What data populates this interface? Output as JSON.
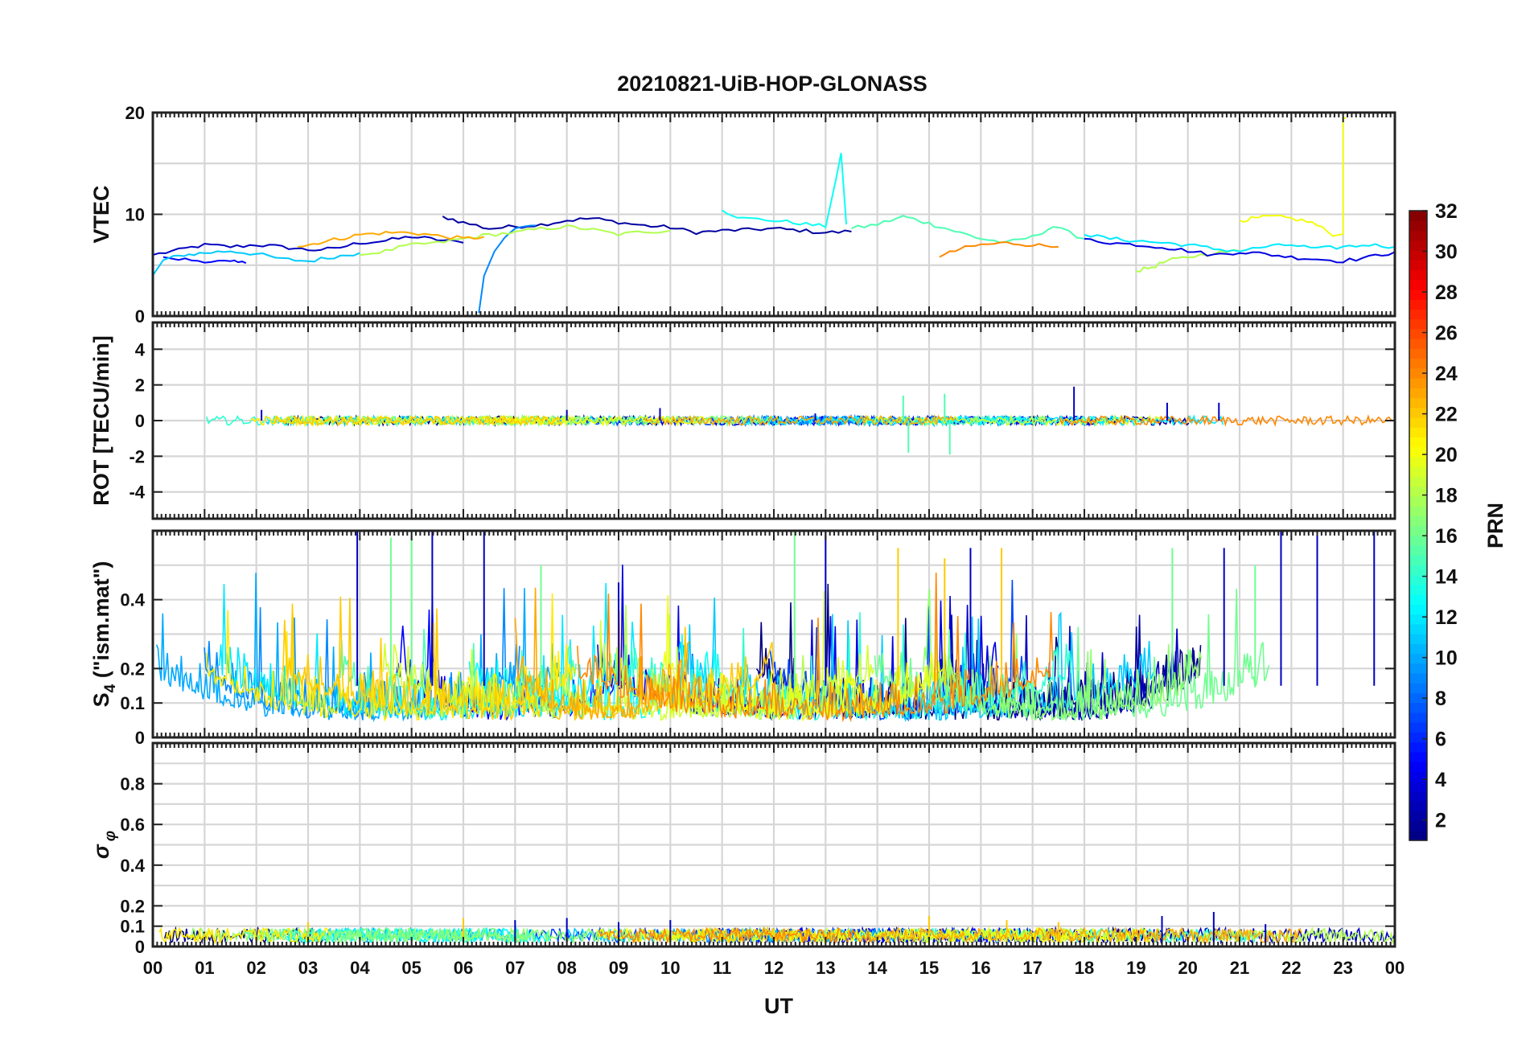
{
  "chart_data": {
    "type": "line",
    "title": "20210821-UiB-HOP-GLONASS",
    "xlabel": "UT",
    "x_range": [
      0,
      24
    ],
    "x_tick_labels": [
      "00",
      "01",
      "02",
      "03",
      "04",
      "05",
      "06",
      "07",
      "08",
      "09",
      "10",
      "11",
      "12",
      "13",
      "14",
      "15",
      "16",
      "17",
      "18",
      "19",
      "20",
      "21",
      "22",
      "23",
      "00"
    ],
    "grid": true,
    "colorbar": {
      "label": "PRN",
      "range": [
        1,
        32
      ],
      "colormap": "jet",
      "tick_labels": [
        "2",
        "4",
        "6",
        "8",
        "10",
        "12",
        "14",
        "16",
        "18",
        "20",
        "22",
        "24",
        "26",
        "28",
        "30",
        "32"
      ],
      "placement": "right"
    },
    "panels": [
      {
        "id": "vtec",
        "ylabel": "VTEC",
        "ylim": [
          0,
          20
        ],
        "y_tick_labels": [
          "0",
          "10",
          "20"
        ],
        "series": [
          {
            "prn": 3,
            "x": [
              0.0,
              0.5,
              1.0,
              1.5,
              2.0,
              2.5,
              3.0,
              3.5,
              4.0,
              4.5,
              5.0,
              5.5,
              6.0
            ],
            "y": [
              6.0,
              6.5,
              7.0,
              6.8,
              7.0,
              6.8,
              6.5,
              6.6,
              7.2,
              7.4,
              7.8,
              7.5,
              7.2
            ]
          },
          {
            "prn": 2,
            "x": [
              5.6,
              6.0,
              6.5,
              7.0,
              7.5,
              8.0,
              8.5,
              9.0,
              9.5,
              10.0,
              10.5,
              11.0,
              11.5,
              12.0,
              12.5,
              13.0,
              13.5
            ],
            "y": [
              9.8,
              9.2,
              8.6,
              8.8,
              9.0,
              9.4,
              9.6,
              9.2,
              8.9,
              8.7,
              8.2,
              8.4,
              8.5,
              8.6,
              8.4,
              8.2,
              8.3
            ]
          },
          {
            "prn": 5,
            "x": [
              0.2,
              0.5,
              1.0,
              1.5,
              1.8
            ],
            "y": [
              5.8,
              5.6,
              5.4,
              5.3,
              5.2
            ]
          },
          {
            "prn": 9,
            "x": [
              6.3,
              6.4,
              6.6,
              6.8,
              7.0,
              7.4
            ],
            "y": [
              0.3,
              4.0,
              6.5,
              7.8,
              8.6,
              8.9
            ]
          },
          {
            "prn": 11,
            "x": [
              0.0,
              0.2,
              0.6,
              1.0,
              1.5,
              2.0,
              2.5,
              3.0,
              3.5,
              4.0
            ],
            "y": [
              4.0,
              5.5,
              6.0,
              6.2,
              6.4,
              6.1,
              5.6,
              5.4,
              5.8,
              6.2
            ]
          },
          {
            "prn": 13,
            "x": [
              11.0,
              11.4,
              12.0,
              12.5,
              13.0,
              13.2,
              13.3,
              13.4
            ],
            "y": [
              10.4,
              9.6,
              9.4,
              9.1,
              8.8,
              13.5,
              16.0,
              9.0
            ]
          },
          {
            "prn": 15,
            "x": [
              13.5,
              14.0,
              14.5,
              14.8,
              15.2,
              15.6,
              16.0,
              16.5,
              17.0,
              17.4,
              18.0
            ],
            "y": [
              8.6,
              9.0,
              9.8,
              9.4,
              8.8,
              8.2,
              7.6,
              7.2,
              7.8,
              8.8,
              7.6
            ]
          },
          {
            "prn": 18,
            "x": [
              4.0,
              4.5,
              5.0,
              5.5,
              6.0,
              6.5,
              7.0,
              7.5,
              8.0,
              8.5,
              9.0,
              9.5,
              10.0
            ],
            "y": [
              6.0,
              6.4,
              7.0,
              7.2,
              7.6,
              8.0,
              8.2,
              8.6,
              8.8,
              8.5,
              8.0,
              8.3,
              8.4
            ]
          },
          {
            "prn": 23,
            "x": [
              2.8,
              3.2,
              3.6,
              4.0,
              4.5,
              5.0,
              5.5,
              6.0,
              6.4
            ],
            "y": [
              6.8,
              7.2,
              7.6,
              8.0,
              8.2,
              8.2,
              7.9,
              7.6,
              7.8
            ]
          },
          {
            "prn": 24,
            "x": [
              15.2,
              15.6,
              16.0,
              16.5,
              17.0,
              17.5
            ],
            "y": [
              5.8,
              6.6,
              7.0,
              7.2,
              7.0,
              6.8
            ]
          },
          {
            "prn": 20,
            "x": [
              21.0,
              21.3,
              21.6,
              22.0,
              22.4,
              22.8,
              23.0,
              23.0,
              23.05
            ],
            "y": [
              9.4,
              9.6,
              9.8,
              9.6,
              9.2,
              8.0,
              8.0,
              19.5,
              19.5
            ]
          },
          {
            "prn": 18,
            "x": [
              19.0,
              19.3,
              19.6,
              20.0,
              20.5,
              21.0
            ],
            "y": [
              4.4,
              4.8,
              5.4,
              5.8,
              6.2,
              6.4
            ]
          },
          {
            "prn": 4,
            "x": [
              18.0,
              18.5,
              19.0,
              19.5,
              20.0,
              20.5,
              21.0,
              21.5,
              22.0,
              22.5,
              23.0,
              23.5,
              24.0
            ],
            "y": [
              7.6,
              7.2,
              7.0,
              6.8,
              6.4,
              6.0,
              6.3,
              6.1,
              5.8,
              5.6,
              5.4,
              5.8,
              6.3
            ]
          },
          {
            "prn": 12,
            "x": [
              18.0,
              18.5,
              19.0,
              19.5,
              20.0,
              20.5,
              21.0,
              21.5,
              22.0,
              22.5,
              23.0,
              23.5,
              24.0
            ],
            "y": [
              8.0,
              7.6,
              7.4,
              7.2,
              7.0,
              6.6,
              6.4,
              6.8,
              7.0,
              6.6,
              6.8,
              7.0,
              6.8
            ]
          }
        ]
      },
      {
        "id": "rot",
        "ylabel": "ROT [TECU/min]",
        "ylim": [
          -5.5,
          5.5
        ],
        "y_tick_labels": [
          "-4",
          "-2",
          "0",
          "2",
          "4"
        ],
        "note": "dense per-PRN traces, mostly within ±0.5 with spikes near 14.5–15.5 UT (−2 to +1.8) and 17.8 UT (+1.9)",
        "series_summary": [
          {
            "prn": 3,
            "x": [
              2.1,
              8.0,
              9.8,
              12.8,
              17.8,
              19.6,
              20.6
            ],
            "y": [
              0.6,
              0.6,
              0.7,
              0.4,
              1.9,
              1.0,
              1.0
            ]
          },
          {
            "prn": 15,
            "x": [
              14.5,
              14.6,
              15.3,
              15.4
            ],
            "y": [
              1.4,
              -1.8,
              1.5,
              -1.9
            ]
          }
        ]
      },
      {
        "id": "s4",
        "ylabel": "S4 (\"ism.mat\")",
        "ylim": [
          0,
          0.6
        ],
        "y_tick_labels": [
          "0",
          "0.1",
          "0.2",
          "0.4"
        ],
        "note": "dense per-PRN scintillation traces, baseline 0.05–0.15 with bursts up to the 0.6 limit",
        "bursts": [
          {
            "prn": 3,
            "x": [
              3.95,
              5.4,
              6.4,
              9.0,
              13.0,
              15.8,
              20.7,
              21.8,
              22.5,
              23.6
            ],
            "y": [
              0.6,
              0.6,
              0.6,
              0.45,
              0.6,
              0.55,
              0.55,
              0.6,
              0.6,
              0.6
            ]
          },
          {
            "prn": 16,
            "x": [
              4.6,
              5.0,
              7.5,
              12.4,
              19.7,
              21.3
            ],
            "y": [
              0.58,
              0.6,
              0.5,
              0.6,
              0.55,
              0.5
            ]
          },
          {
            "prn": 22,
            "x": [
              14.4,
              15.3,
              16.4
            ],
            "y": [
              0.55,
              0.52,
              0.55
            ]
          }
        ]
      },
      {
        "id": "sigma_phi",
        "ylabel": "σφ",
        "ylim": [
          0,
          1.0
        ],
        "y_tick_labels": [
          "0",
          "0.1",
          "0.2",
          "0.4",
          "0.6",
          "0.8"
        ],
        "note": "dense per-PRN traces, mostly 0.02–0.12 with peaks ~0.17",
        "series_summary": [
          {
            "prn": 3,
            "x": [
              7.0,
              8.0,
              9.0,
              10.0,
              19.5,
              20.5,
              21.5
            ],
            "y": [
              0.13,
              0.14,
              0.12,
              0.13,
              0.15,
              0.17,
              0.11
            ]
          },
          {
            "prn": 22,
            "x": [
              3.0,
              6.0,
              15.0,
              16.5,
              17.5
            ],
            "y": [
              0.12,
              0.14,
              0.15,
              0.13,
              0.12
            ]
          }
        ]
      }
    ]
  }
}
